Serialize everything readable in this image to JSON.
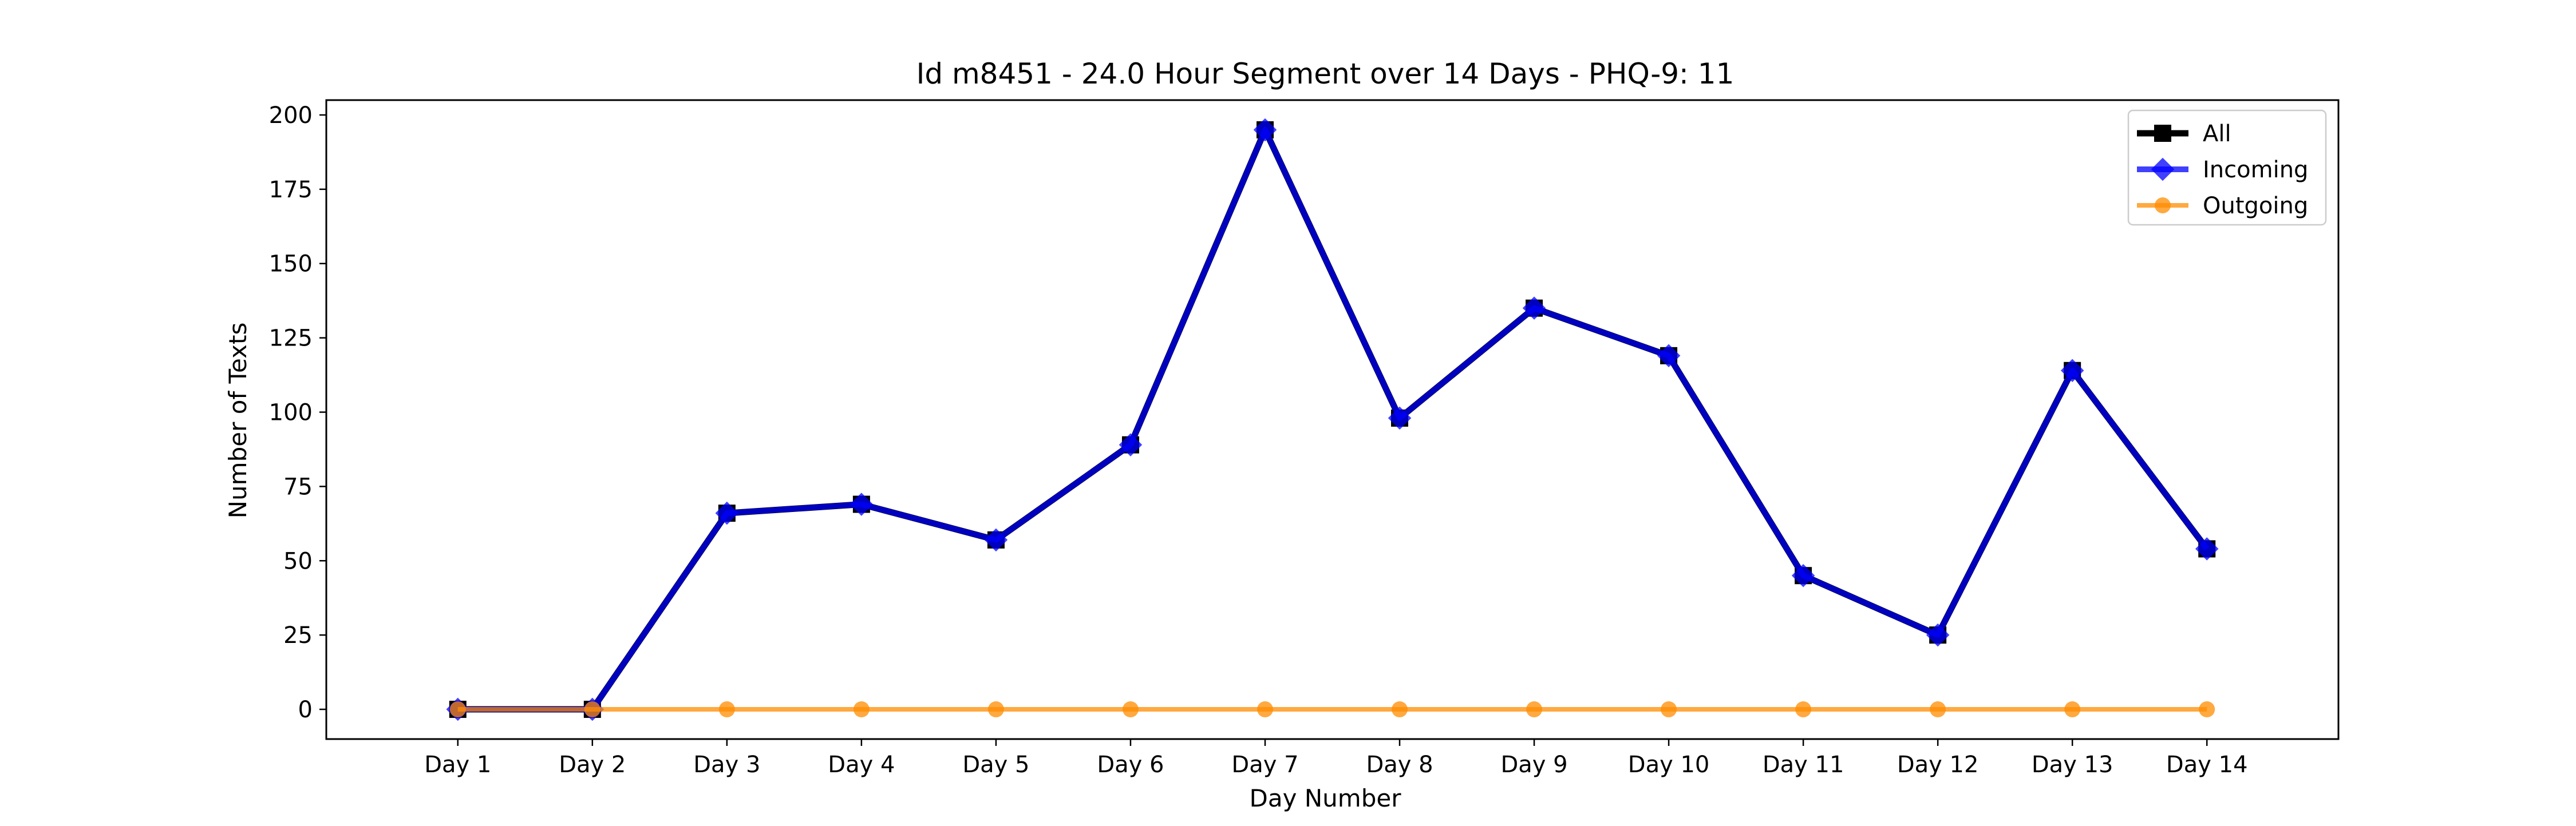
{
  "chart_data": {
    "type": "line",
    "title": "Id m8451 - 24.0 Hour Segment over 14 Days - PHQ-9: 11",
    "xlabel": "Day Number",
    "ylabel": "Number of Texts",
    "categories": [
      "Day 1",
      "Day 2",
      "Day 3",
      "Day 4",
      "Day 5",
      "Day 6",
      "Day 7",
      "Day 8",
      "Day 9",
      "Day 10",
      "Day 11",
      "Day 12",
      "Day 13",
      "Day 14"
    ],
    "ylim": [
      -10,
      205
    ],
    "yticks": [
      0,
      25,
      50,
      75,
      100,
      125,
      150,
      175,
      200
    ],
    "grid": false,
    "legend_position": "top-right",
    "series": [
      {
        "name": "All",
        "color": "#000000",
        "marker": "square",
        "values": [
          0,
          0,
          66,
          69,
          57,
          89,
          195,
          98,
          135,
          119,
          45,
          25,
          114,
          54
        ]
      },
      {
        "name": "Incoming",
        "color": "#0000ff",
        "marker": "diamond",
        "values": [
          0,
          0,
          66,
          69,
          57,
          89,
          195,
          98,
          135,
          119,
          45,
          25,
          114,
          54
        ]
      },
      {
        "name": "Outgoing",
        "color": "#ff8c00",
        "marker": "circle",
        "values": [
          0,
          0,
          0,
          0,
          0,
          0,
          0,
          0,
          0,
          0,
          0,
          0,
          0,
          0
        ]
      }
    ]
  }
}
